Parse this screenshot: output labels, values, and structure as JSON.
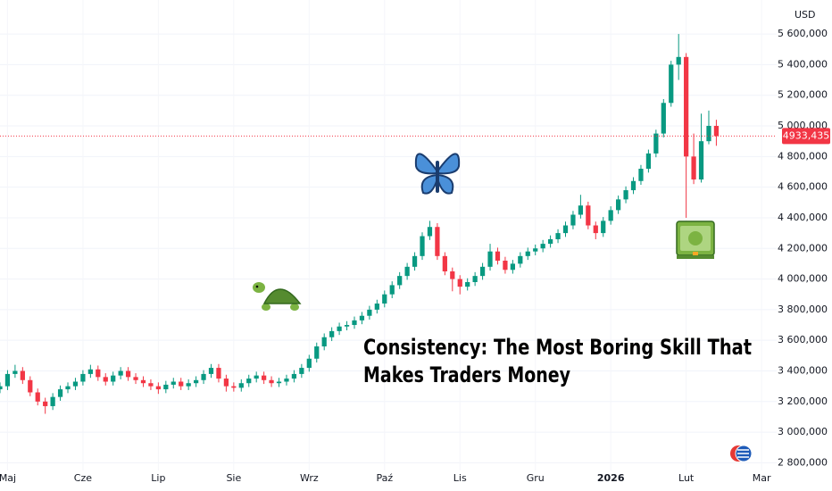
{
  "chart_data": {
    "type": "candlestick",
    "currency": "USD",
    "title_lines": [
      "Consistency: The Most Boring Skill That",
      "Makes Traders Money"
    ],
    "up_color": "#089981",
    "down_color": "#f23645",
    "grid": true,
    "current_price": {
      "value": 4933435,
      "label": "4933,435"
    },
    "xlim": [
      0,
      103
    ],
    "xticks": [
      {
        "value": 1,
        "label": "Maj"
      },
      {
        "value": 11,
        "label": "Cze"
      },
      {
        "value": 21,
        "label": "Lip"
      },
      {
        "value": 31,
        "label": "Sie"
      },
      {
        "value": 41,
        "label": "Wrz"
      },
      {
        "value": 51,
        "label": "Paź"
      },
      {
        "value": 61,
        "label": "Lis"
      },
      {
        "value": 71,
        "label": "Gru"
      },
      {
        "value": 81,
        "label": "2026"
      },
      {
        "value": 91,
        "label": "Lut"
      },
      {
        "value": 101,
        "label": "Mar"
      }
    ],
    "ylim": [
      2750000,
      5822000
    ],
    "yticks": [
      {
        "value": 2800000,
        "label": "2 800,000"
      },
      {
        "value": 3000000,
        "label": "3 000,000"
      },
      {
        "value": 3200000,
        "label": "3 200,000"
      },
      {
        "value": 3400000,
        "label": "3 400,000"
      },
      {
        "value": 3600000,
        "label": "3 600,000"
      },
      {
        "value": 3800000,
        "label": "3 800,000"
      },
      {
        "value": 4000000,
        "label": "4 000,000"
      },
      {
        "value": 4200000,
        "label": "4 200,000"
      },
      {
        "value": 4400000,
        "label": "4 400,000"
      },
      {
        "value": 4600000,
        "label": "4 600,000"
      },
      {
        "value": 4800000,
        "label": "4 800,000"
      },
      {
        "value": 5000000,
        "label": "5 000,000"
      },
      {
        "value": 5200000,
        "label": "5 200,000"
      },
      {
        "value": 5400000,
        "label": "5 400,000"
      },
      {
        "value": 5600000,
        "label": "5 600,000"
      }
    ],
    "open": [
      3280000,
      3300000,
      3380000,
      3400000,
      3340000,
      3260000,
      3200000,
      3170000,
      3230000,
      3280000,
      3300000,
      3330000,
      3380000,
      3410000,
      3360000,
      3330000,
      3370000,
      3400000,
      3360000,
      3340000,
      3320000,
      3300000,
      3280000,
      3310000,
      3330000,
      3300000,
      3320000,
      3340000,
      3380000,
      3420000,
      3350000,
      3300000,
      3290000,
      3320000,
      3350000,
      3370000,
      3340000,
      3320000,
      3330000,
      3350000,
      3380000,
      3420000,
      3480000,
      3560000,
      3620000,
      3660000,
      3690000,
      3700000,
      3730000,
      3760000,
      3800000,
      3840000,
      3900000,
      3960000,
      4020000,
      4080000,
      4150000,
      4280000,
      4340000,
      4150000,
      4050000,
      4000000,
      3950000,
      3980000,
      4020000,
      4080000,
      4180000,
      4120000,
      4060000,
      4100000,
      4150000,
      4180000,
      4200000,
      4230000,
      4260000,
      4300000,
      4350000,
      4420000,
      4480000,
      4350000,
      4300000,
      4380000,
      4450000,
      4520000,
      4580000,
      4640000,
      4720000,
      4820000,
      4950000,
      5150000,
      5400000,
      5450000,
      4800000,
      4650000,
      4900000,
      5000000
    ],
    "high": [
      3325000,
      3405000,
      3440000,
      3425000,
      3365000,
      3285000,
      3225000,
      3255000,
      3305000,
      3325000,
      3355000,
      3405000,
      3440000,
      3435000,
      3385000,
      3395000,
      3425000,
      3425000,
      3385000,
      3365000,
      3345000,
      3325000,
      3335000,
      3355000,
      3355000,
      3345000,
      3365000,
      3405000,
      3445000,
      3445000,
      3375000,
      3325000,
      3345000,
      3375000,
      3395000,
      3395000,
      3365000,
      3355000,
      3375000,
      3405000,
      3445000,
      3505000,
      3585000,
      3645000,
      3685000,
      3715000,
      3725000,
      3755000,
      3785000,
      3825000,
      3865000,
      3925000,
      3985000,
      4045000,
      4105000,
      4175000,
      4305000,
      4380000,
      4365000,
      4175000,
      4075000,
      4025000,
      4005000,
      4045000,
      4105000,
      4230000,
      4205000,
      4145000,
      4125000,
      4175000,
      4205000,
      4225000,
      4255000,
      4285000,
      4325000,
      4375000,
      4445000,
      4550000,
      4505000,
      4375000,
      4405000,
      4475000,
      4545000,
      4605000,
      4665000,
      4745000,
      4845000,
      4975000,
      5175000,
      5425000,
      5600000,
      5475000,
      4950000,
      5080000,
      5100000,
      5040000
    ],
    "low": [
      3255000,
      3275000,
      3355000,
      3315000,
      3235000,
      3175000,
      3120000,
      3145000,
      3205000,
      3255000,
      3275000,
      3305000,
      3355000,
      3335000,
      3305000,
      3305000,
      3345000,
      3335000,
      3315000,
      3295000,
      3275000,
      3250000,
      3255000,
      3285000,
      3275000,
      3275000,
      3295000,
      3315000,
      3355000,
      3325000,
      3265000,
      3265000,
      3265000,
      3295000,
      3325000,
      3315000,
      3295000,
      3295000,
      3305000,
      3325000,
      3355000,
      3395000,
      3455000,
      3535000,
      3595000,
      3635000,
      3665000,
      3675000,
      3705000,
      3735000,
      3775000,
      3815000,
      3875000,
      3935000,
      3995000,
      4055000,
      4125000,
      4255000,
      4125000,
      4025000,
      3920000,
      3900000,
      3925000,
      3955000,
      3995000,
      4055000,
      4095000,
      4035000,
      4035000,
      4075000,
      4125000,
      4155000,
      4175000,
      4205000,
      4235000,
      4275000,
      4325000,
      4395000,
      4325000,
      4260000,
      4275000,
      4355000,
      4425000,
      4495000,
      4555000,
      4615000,
      4695000,
      4795000,
      4925000,
      5125000,
      5300000,
      4400000,
      4620000,
      4630000,
      4880000,
      4870000
    ],
    "close": [
      3300000,
      3380000,
      3400000,
      3340000,
      3260000,
      3200000,
      3170000,
      3230000,
      3280000,
      3300000,
      3330000,
      3380000,
      3410000,
      3360000,
      3330000,
      3370000,
      3400000,
      3360000,
      3340000,
      3320000,
      3300000,
      3280000,
      3310000,
      3330000,
      3300000,
      3320000,
      3340000,
      3380000,
      3420000,
      3350000,
      3300000,
      3290000,
      3320000,
      3350000,
      3370000,
      3340000,
      3320000,
      3330000,
      3350000,
      3380000,
      3420000,
      3480000,
      3560000,
      3620000,
      3660000,
      3690000,
      3700000,
      3730000,
      3760000,
      3800000,
      3840000,
      3900000,
      3960000,
      4020000,
      4080000,
      4150000,
      4280000,
      4340000,
      4150000,
      4050000,
      4000000,
      3950000,
      3980000,
      4020000,
      4080000,
      4180000,
      4120000,
      4060000,
      4100000,
      4150000,
      4180000,
      4200000,
      4230000,
      4260000,
      4300000,
      4350000,
      4420000,
      4480000,
      4350000,
      4300000,
      4380000,
      4450000,
      4520000,
      4580000,
      4640000,
      4720000,
      4820000,
      4950000,
      5150000,
      5400000,
      5450000,
      4800000,
      4650000,
      4900000,
      5000000,
      4933435
    ]
  }
}
